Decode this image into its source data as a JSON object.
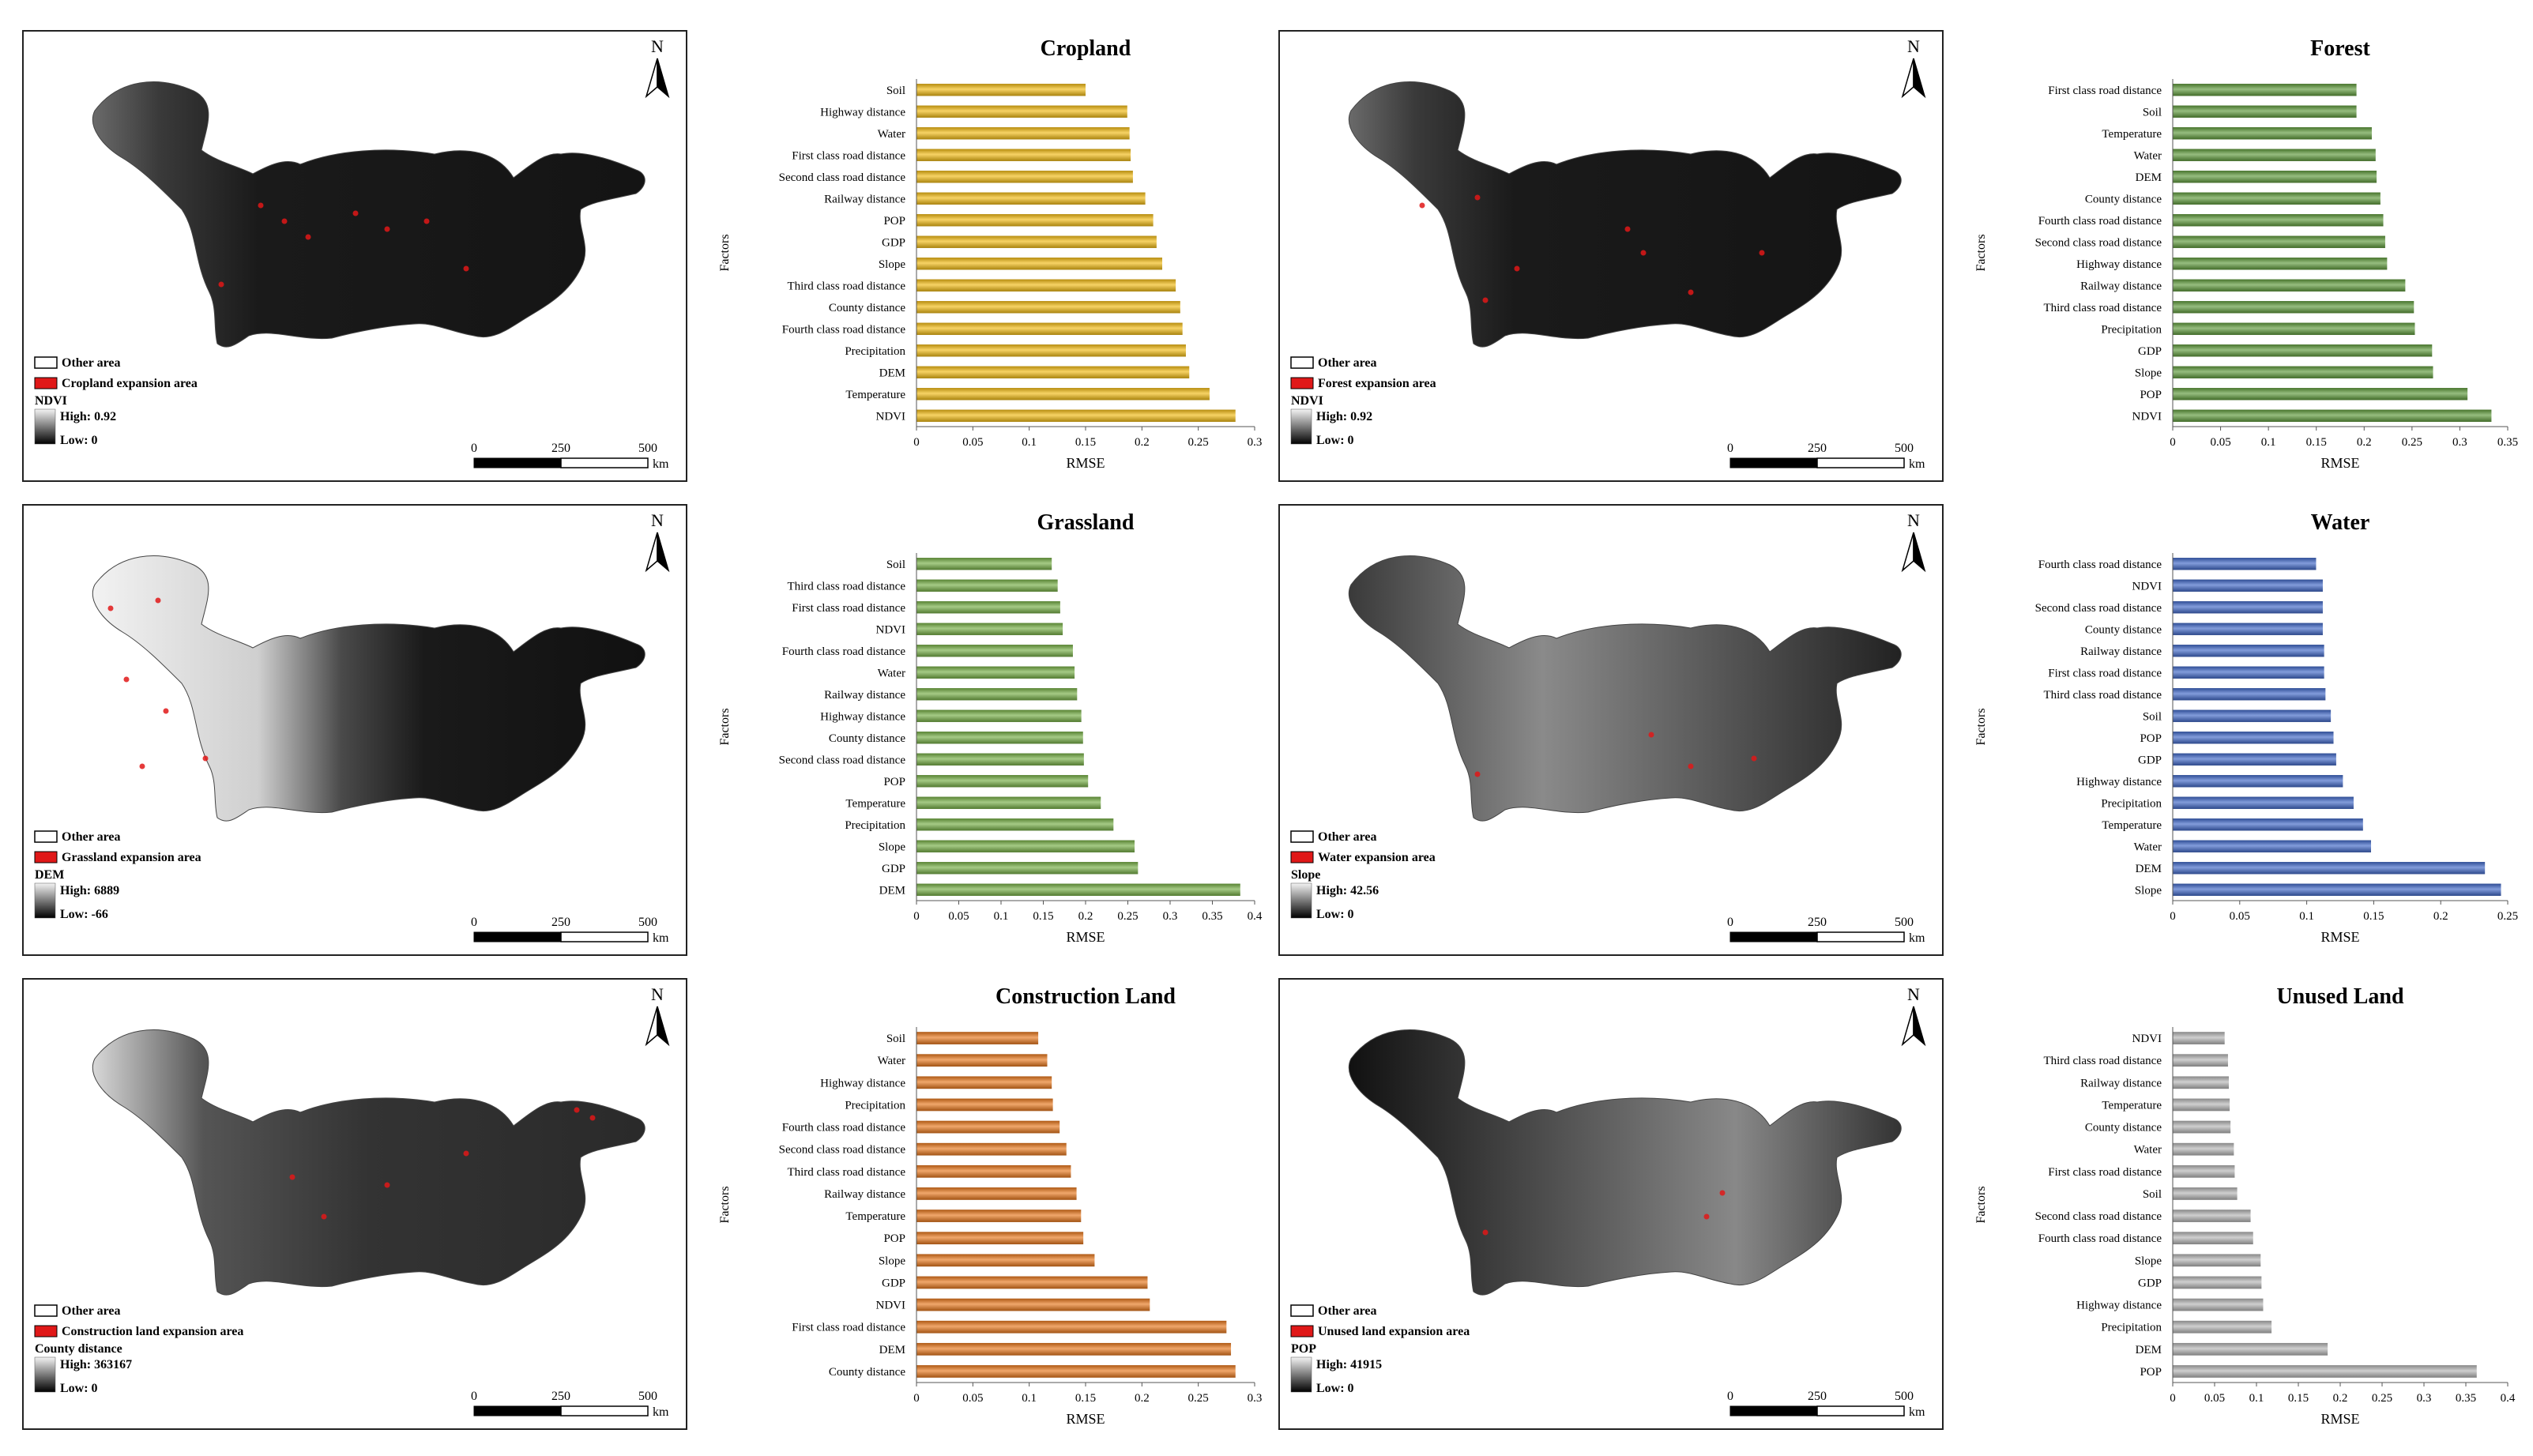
{
  "colors": {
    "cropland": "#f2bb12",
    "forest": "#5e9a3a",
    "grassland": "#75ae44",
    "water": "#3f67c7",
    "construction": "#e8771b",
    "unused": "#b5b5b5",
    "expansion": "#e01818"
  },
  "common": {
    "north": "N",
    "scale_ticks": [
      "0",
      "250",
      "500"
    ],
    "scale_unit": "km",
    "other_area": "Other area",
    "low_prefix": "Low: ",
    "high_prefix": "High: "
  },
  "maps": [
    {
      "expansion_label": "Cropland expansion area",
      "layer": "NDVI",
      "high": "0.92",
      "low": "0"
    },
    {
      "expansion_label": "Forest expansion area",
      "layer": "NDVI",
      "high": "0.92",
      "low": "0"
    },
    {
      "expansion_label": "Grassland expansion area",
      "layer": "DEM",
      "high": "6889",
      "low": "-66"
    },
    {
      "expansion_label": "Water expansion area",
      "layer": "Slope",
      "high": "42.56",
      "low": "0"
    },
    {
      "expansion_label": "Construction land expansion area",
      "layer": "County distance",
      "high": "363167",
      "low": "0"
    },
    {
      "expansion_label": "Unused land expansion area",
      "layer": "POP",
      "high": "41915",
      "low": "0"
    }
  ],
  "chart_data": [
    {
      "type": "bar",
      "orientation": "horizontal",
      "title": "Cropland",
      "xlabel": "RMSE",
      "ylabel": "Factors",
      "xlim": [
        0,
        0.3
      ],
      "xticks": [
        "0",
        "0.05",
        "0.1",
        "0.15",
        "0.2",
        "0.25",
        "0.3"
      ],
      "categories": [
        "Soil",
        "Highway distance",
        "Water",
        "First class road distance",
        "Second class road distance",
        "Railway distance",
        "POP",
        "GDP",
        "Slope",
        "Third class road distance",
        "County distance",
        "Fourth class road distance",
        "Precipitation",
        "DEM",
        "Temperature",
        "NDVI"
      ],
      "values": [
        0.15,
        0.187,
        0.189,
        0.19,
        0.192,
        0.203,
        0.21,
        0.213,
        0.218,
        0.23,
        0.234,
        0.236,
        0.239,
        0.242,
        0.26,
        0.283
      ],
      "color_key": "cropland"
    },
    {
      "type": "bar",
      "orientation": "horizontal",
      "title": "Forest",
      "xlabel": "RMSE",
      "ylabel": "Factors",
      "xlim": [
        0,
        0.35
      ],
      "xticks": [
        "0",
        "0.05",
        "0.1",
        "0.15",
        "0.2",
        "0.25",
        "0.3",
        "0.35"
      ],
      "categories": [
        "First class road distance",
        "Soil",
        "Temperature",
        "Water",
        "DEM",
        "County distance",
        "Fourth class road distance",
        "Second class road distance",
        "Highway distance",
        "Railway distance",
        "Third class road distance",
        "Precipitation",
        "GDP",
        "Slope",
        "POP",
        "NDVI"
      ],
      "values": [
        0.192,
        0.192,
        0.208,
        0.212,
        0.213,
        0.217,
        0.22,
        0.222,
        0.224,
        0.243,
        0.252,
        0.253,
        0.271,
        0.272,
        0.308,
        0.333
      ],
      "color_key": "forest"
    },
    {
      "type": "bar",
      "orientation": "horizontal",
      "title": "Grassland",
      "xlabel": "RMSE",
      "ylabel": "Factors",
      "xlim": [
        0,
        0.4
      ],
      "xticks": [
        "0",
        "0.05",
        "0.1",
        "0.15",
        "0.2",
        "0.25",
        "0.3",
        "0.35",
        "0.4"
      ],
      "categories": [
        "Soil",
        "Third class road distance",
        "First class road distance",
        "NDVI",
        "Fourth class road distance",
        "Water",
        "Railway distance",
        "Highway distance",
        "County distance",
        "Second class road distance",
        "POP",
        "Temperature",
        "Precipitation",
        "Slope",
        "GDP",
        "DEM"
      ],
      "values": [
        0.16,
        0.167,
        0.17,
        0.173,
        0.185,
        0.187,
        0.19,
        0.195,
        0.197,
        0.198,
        0.203,
        0.218,
        0.233,
        0.258,
        0.262,
        0.383
      ],
      "color_key": "grassland"
    },
    {
      "type": "bar",
      "orientation": "horizontal",
      "title": "Water",
      "xlabel": "RMSE",
      "ylabel": "Factors",
      "xlim": [
        0,
        0.25
      ],
      "xticks": [
        "0",
        "0.05",
        "0.1",
        "0.15",
        "0.2",
        "0.25"
      ],
      "categories": [
        "Fourth class road distance",
        "NDVI",
        "Second class road distance",
        "County distance",
        "Railway distance",
        "First class road distance",
        "Third class road distance",
        "Soil",
        "POP",
        "GDP",
        "Highway distance",
        "Precipitation",
        "Temperature",
        "Water",
        "DEM",
        "Slope"
      ],
      "values": [
        0.107,
        0.112,
        0.112,
        0.112,
        0.113,
        0.113,
        0.114,
        0.118,
        0.12,
        0.122,
        0.127,
        0.135,
        0.142,
        0.148,
        0.233,
        0.245
      ],
      "color_key": "water"
    },
    {
      "type": "bar",
      "orientation": "horizontal",
      "title": "Construction Land",
      "xlabel": "RMSE",
      "ylabel": "Factors",
      "xlim": [
        0,
        0.3
      ],
      "xticks": [
        "0",
        "0.05",
        "0.1",
        "0.15",
        "0.2",
        "0.25",
        "0.3"
      ],
      "categories": [
        "Soil",
        "Water",
        "Highway distance",
        "Precipitation",
        "Fourth class road distance",
        "Second class road distance",
        "Third class road distance",
        "Railway distance",
        "Temperature",
        "POP",
        "Slope",
        "GDP",
        "NDVI",
        "First class road distance",
        "DEM",
        "County distance"
      ],
      "values": [
        0.108,
        0.116,
        0.12,
        0.121,
        0.127,
        0.133,
        0.137,
        0.142,
        0.146,
        0.148,
        0.158,
        0.205,
        0.207,
        0.275,
        0.279,
        0.283
      ],
      "color_key": "construction"
    },
    {
      "type": "bar",
      "orientation": "horizontal",
      "title": "Unused Land",
      "xlabel": "RMSE",
      "ylabel": "Factors",
      "xlim": [
        0,
        0.4
      ],
      "xticks": [
        "0",
        "0.05",
        "0.1",
        "0.15",
        "0.2",
        "0.25",
        "0.3",
        "0.35",
        "0.4"
      ],
      "categories": [
        "NDVI",
        "Third class road distance",
        "Railway distance",
        "Temperature",
        "County distance",
        "Water",
        "First class road distance",
        "Soil",
        "Second class road distance",
        "Fourth class road distance",
        "Slope",
        "GDP",
        "Highway distance",
        "Precipitation",
        "DEM",
        "POP"
      ],
      "values": [
        0.062,
        0.066,
        0.067,
        0.068,
        0.069,
        0.073,
        0.074,
        0.077,
        0.093,
        0.096,
        0.105,
        0.106,
        0.108,
        0.118,
        0.185,
        0.363
      ],
      "color_key": "unused"
    }
  ]
}
